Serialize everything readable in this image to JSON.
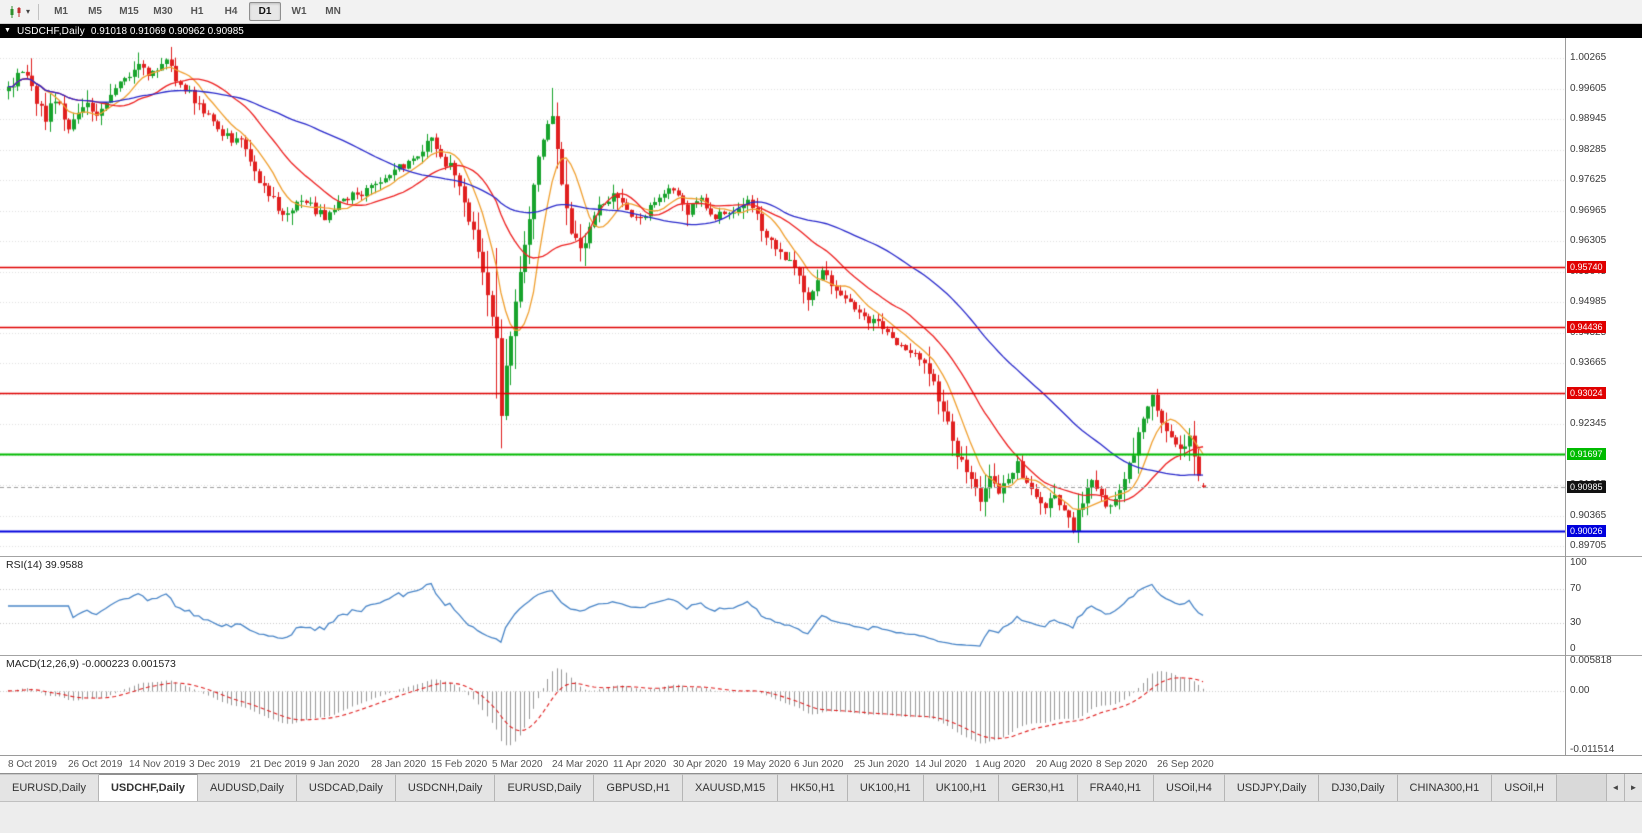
{
  "toolbar": {
    "dropdown_icon": "▾",
    "timeframes": [
      {
        "label": "M1",
        "active": false
      },
      {
        "label": "M5",
        "active": false
      },
      {
        "label": "M15",
        "active": false
      },
      {
        "label": "M30",
        "active": false
      },
      {
        "label": "H1",
        "active": false
      },
      {
        "label": "H4",
        "active": false
      },
      {
        "label": "D1",
        "active": true
      },
      {
        "label": "W1",
        "active": false
      },
      {
        "label": "MN",
        "active": false
      }
    ]
  },
  "title_bar": {
    "menu_icon": "▼",
    "symbol": "USDCHF,Daily",
    "ohlc": "0.91018 0.91069 0.90962 0.90985"
  },
  "chart_data": {
    "type": "candlestick",
    "symbol": "USDCHF",
    "timeframe": "Daily",
    "candle_count": 258,
    "candles_per_label": 13,
    "x_labels": [
      "8 Oct 2019",
      "26 Oct 2019",
      "14 Nov 2019",
      "3 Dec 2019",
      "21 Dec 2019",
      "9 Jan 2020",
      "28 Jan 2020",
      "15 Feb 2020",
      "5 Mar 2020",
      "24 Mar 2020",
      "11 Apr 2020",
      "30 Apr 2020",
      "19 May 2020",
      "6 Jun 2020",
      "25 Jun 2020",
      "14 Jul 2020",
      "1 Aug 2020",
      "20 Aug 2020",
      "8 Sep 2020",
      "26 Sep 2020"
    ],
    "price_axis": {
      "max": 1.007,
      "min": 0.8949,
      "labels": [
        "1.00265",
        "0.99605",
        "0.98945",
        "0.98285",
        "0.97625",
        "0.96965",
        "0.96305",
        "0.95645",
        "0.94985",
        "0.94325",
        "0.93665",
        "0.93005",
        "0.92345",
        "0.91685",
        "0.91025",
        "0.90365",
        "0.89705"
      ]
    },
    "current_price": "0.90985",
    "last_candle": {
      "open": 0.91018,
      "high": 0.91069,
      "low": 0.90962,
      "close": 0.90985
    },
    "price_anchors": [
      [
        0,
        0.9955
      ],
      [
        2,
        0.9985
      ],
      [
        4,
        0.9992
      ],
      [
        6,
        0.9932
      ],
      [
        8,
        0.9896
      ],
      [
        10,
        0.9942
      ],
      [
        13,
        0.9876
      ],
      [
        15,
        0.9906
      ],
      [
        17,
        0.9936
      ],
      [
        19,
        0.9896
      ],
      [
        21,
        0.9931
      ],
      [
        23,
        0.9968
      ],
      [
        26,
        0.9991
      ],
      [
        28,
        1.0012
      ],
      [
        30,
        0.9993
      ],
      [
        32,
        1.0004
      ],
      [
        34,
        1.002
      ],
      [
        36,
        0.9982
      ],
      [
        39,
        0.9948
      ],
      [
        42,
        0.9906
      ],
      [
        45,
        0.9872
      ],
      [
        48,
        0.9846
      ],
      [
        50,
        0.9856
      ],
      [
        52,
        0.9801
      ],
      [
        55,
        0.9746
      ],
      [
        58,
        0.9701
      ],
      [
        60,
        0.9686
      ],
      [
        62,
        0.9721
      ],
      [
        65,
        0.9706
      ],
      [
        68,
        0.9681
      ],
      [
        71,
        0.9711
      ],
      [
        74,
        0.9726
      ],
      [
        78,
        0.9746
      ],
      [
        82,
        0.9776
      ],
      [
        86,
        0.9801
      ],
      [
        89,
        0.9831
      ],
      [
        91,
        0.9846
      ],
      [
        93,
        0.9811
      ],
      [
        95,
        0.9791
      ],
      [
        97,
        0.9746
      ],
      [
        99,
        0.9681
      ],
      [
        101,
        0.9611
      ],
      [
        103,
        0.9521
      ],
      [
        105,
        0.9421
      ],
      [
        106,
        0.9261
      ],
      [
        107,
        0.9351
      ],
      [
        108,
        0.9421
      ],
      [
        110,
        0.9561
      ],
      [
        112,
        0.9681
      ],
      [
        114,
        0.9821
      ],
      [
        116,
        0.9881
      ],
      [
        117,
        0.9896
      ],
      [
        119,
        0.9761
      ],
      [
        121,
        0.9651
      ],
      [
        123,
        0.9606
      ],
      [
        125,
        0.9661
      ],
      [
        127,
        0.9701
      ],
      [
        130,
        0.9731
      ],
      [
        133,
        0.9696
      ],
      [
        136,
        0.9681
      ],
      [
        139,
        0.9716
      ],
      [
        143,
        0.9741
      ],
      [
        146,
        0.9696
      ],
      [
        149,
        0.9716
      ],
      [
        152,
        0.9686
      ],
      [
        156,
        0.9701
      ],
      [
        159,
        0.9721
      ],
      [
        162,
        0.9661
      ],
      [
        165,
        0.9611
      ],
      [
        169,
        0.9576
      ],
      [
        172,
        0.9506
      ],
      [
        175,
        0.9561
      ],
      [
        178,
        0.9526
      ],
      [
        182,
        0.9481
      ],
      [
        186,
        0.9456
      ],
      [
        190,
        0.9421
      ],
      [
        193,
        0.9396
      ],
      [
        195,
        0.9381
      ],
      [
        198,
        0.9346
      ],
      [
        201,
        0.9261
      ],
      [
        204,
        0.9171
      ],
      [
        207,
        0.9106
      ],
      [
        209,
        0.9076
      ],
      [
        211,
        0.9131
      ],
      [
        213,
        0.9086
      ],
      [
        215,
        0.9121
      ],
      [
        217,
        0.9146
      ],
      [
        219,
        0.9101
      ],
      [
        221,
        0.9086
      ],
      [
        223,
        0.9051
      ],
      [
        225,
        0.9086
      ],
      [
        227,
        0.9041
      ],
      [
        229,
        0.9012
      ],
      [
        231,
        0.9071
      ],
      [
        233,
        0.9111
      ],
      [
        235,
        0.9076
      ],
      [
        237,
        0.9051
      ],
      [
        239,
        0.9091
      ],
      [
        241,
        0.9141
      ],
      [
        243,
        0.9211
      ],
      [
        245,
        0.9281
      ],
      [
        246,
        0.9291
      ],
      [
        248,
        0.9241
      ],
      [
        250,
        0.9196
      ],
      [
        252,
        0.9171
      ],
      [
        254,
        0.9206
      ],
      [
        255,
        0.9171
      ],
      [
        256,
        0.9121
      ],
      [
        257,
        0.90985
      ]
    ],
    "overrides": {
      "34": {
        "h": 1.0026
      },
      "106": {
        "l": 0.9182
      },
      "229": {
        "l": 0.8998
      },
      "246": {
        "h": 0.9295
      },
      "257": {
        "o": 0.91018,
        "h": 0.91069,
        "l": 0.90962,
        "c": 0.90985
      }
    },
    "moving_averages": [
      {
        "period": 8,
        "color": "#f0a030"
      },
      {
        "period": 20,
        "color": "#ee2222"
      },
      {
        "period": 50,
        "color": "#2a2acc"
      }
    ],
    "hlines": [
      {
        "price": 0.9574,
        "label": "0.95740",
        "color": "#e00000",
        "width": 1.5
      },
      {
        "price": 0.94436,
        "label": "0.94436",
        "color": "#e00000",
        "width": 1.5
      },
      {
        "price": 0.93024,
        "label": "0.93024",
        "color": "#e00000",
        "width": 1.5
      },
      {
        "price": 0.91697,
        "label": "0.91697",
        "color": "#00bb00",
        "width": 2
      },
      {
        "price": 0.90026,
        "label": "0.90026",
        "color": "#0000dd",
        "width": 2
      }
    ],
    "rsi": {
      "label": "RSI(14) 39.9588",
      "period": 14,
      "current": 39.9588,
      "color": "#4a86c8",
      "levels": [
        70,
        30
      ],
      "axis_labels": [
        {
          "text": "100",
          "value": 100
        },
        {
          "text": "70",
          "value": 70
        },
        {
          "text": "30",
          "value": 30
        },
        {
          "text": "0",
          "value": 0
        }
      ]
    },
    "macd": {
      "label": "MACD(12,26,9) -0.000223 0.001573",
      "fast": 12,
      "slow": 26,
      "signal_period": 9,
      "values": [
        -0.000223,
        0.001573
      ],
      "max": 0.005818,
      "min": -0.011514,
      "hist_color": "#9a9a9a",
      "signal_color": "#e02222",
      "axis_labels": [
        {
          "text": "0.005818",
          "value": 0.005818
        },
        {
          "text": "0.00",
          "value": 0
        },
        {
          "text": "-0.011514",
          "value": -0.011514
        }
      ]
    }
  },
  "tabs": [
    {
      "label": "EURUSD,Daily",
      "active": false
    },
    {
      "label": "USDCHF,Daily",
      "active": true
    },
    {
      "label": "AUDUSD,Daily",
      "active": false
    },
    {
      "label": "USDCAD,Daily",
      "active": false
    },
    {
      "label": "USDCNH,Daily",
      "active": false
    },
    {
      "label": "EURUSD,Daily",
      "active": false
    },
    {
      "label": "GBPUSD,H1",
      "active": false
    },
    {
      "label": "XAUUSD,M15",
      "active": false
    },
    {
      "label": "HK50,H1",
      "active": false
    },
    {
      "label": "UK100,H1",
      "active": false
    },
    {
      "label": "UK100,H1",
      "active": false
    },
    {
      "label": "GER30,H1",
      "active": false
    },
    {
      "label": "FRA40,H1",
      "active": false
    },
    {
      "label": "USOil,H4",
      "active": false
    },
    {
      "label": "USDJPY,Daily",
      "active": false
    },
    {
      "label": "DJ30,Daily",
      "active": false
    },
    {
      "label": "CHINA300,H1",
      "active": false
    },
    {
      "label": "USOil,H",
      "active": false
    }
  ],
  "tab_bar": {
    "scroll_left": "◄",
    "scroll_right": "►"
  },
  "colors": {
    "up": "#17a32c",
    "down": "#e01f1f",
    "grid": "#e0e0e0",
    "badge_black": "#111111"
  }
}
